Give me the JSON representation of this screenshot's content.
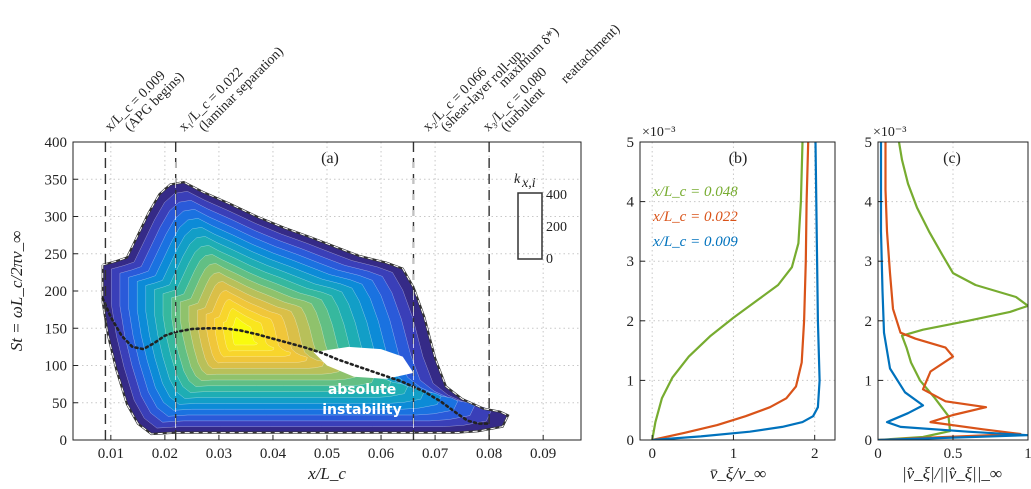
{
  "chart_data": [
    {
      "panel": "(a)",
      "type": "heatmap",
      "xlabel": "x/L_c",
      "ylabel": "St = ωL_c/2πv_∞",
      "xlim": [
        0.003,
        0.097
      ],
      "ylim": [
        0,
        400
      ],
      "xticks": [
        "0.01",
        "0.02",
        "0.03",
        "0.04",
        "0.05",
        "0.06",
        "0.07",
        "0.08",
        "0.09"
      ],
      "yticks": [
        "0",
        "50",
        "100",
        "150",
        "200",
        "250",
        "300",
        "350",
        "400"
      ],
      "grid": true,
      "colorbar": {
        "label": "k_{x,i}",
        "ticks": [
          "0",
          "200",
          "400"
        ],
        "placement": "top-right"
      },
      "inner_text": "absolute instability",
      "vlines": [
        {
          "x": 0.009,
          "label": "x/L_c = 0.009",
          "note": "(APG begins)"
        },
        {
          "x": 0.022,
          "label": "x₁/L_c = 0.022",
          "note": "(laminar separation)"
        },
        {
          "x": 0.066,
          "label": "x₂/L_c = 0.066",
          "note": "(shear-layer roll-up,",
          "note2": "maximum δ*)"
        },
        {
          "x": 0.08,
          "label": "x₃/L_c = 0.080",
          "note": "(turbulent",
          "note2": "reattachment)"
        }
      ],
      "outer_boundary": [
        [
          0.0085,
          235
        ],
        [
          0.011,
          240
        ],
        [
          0.013,
          245
        ],
        [
          0.015,
          275
        ],
        [
          0.017,
          305
        ],
        [
          0.019,
          330
        ],
        [
          0.021,
          343
        ],
        [
          0.0235,
          346
        ],
        [
          0.027,
          333
        ],
        [
          0.032,
          317
        ],
        [
          0.037,
          300
        ],
        [
          0.042,
          285
        ],
        [
          0.047,
          272
        ],
        [
          0.052,
          258
        ],
        [
          0.056,
          247
        ],
        [
          0.061,
          238
        ],
        [
          0.064,
          230
        ],
        [
          0.066,
          205
        ],
        [
          0.068,
          165
        ],
        [
          0.07,
          110
        ],
        [
          0.072,
          72
        ],
        [
          0.075,
          55
        ],
        [
          0.079,
          42
        ],
        [
          0.082,
          38
        ],
        [
          0.0835,
          33
        ],
        [
          0.0825,
          18
        ],
        [
          0.078,
          12
        ],
        [
          0.074,
          10
        ],
        [
          0.068,
          10
        ],
        [
          0.06,
          10
        ],
        [
          0.05,
          10
        ],
        [
          0.04,
          10
        ],
        [
          0.03,
          10
        ],
        [
          0.022,
          10
        ],
        [
          0.0175,
          8
        ],
        [
          0.015,
          22
        ],
        [
          0.013,
          48
        ],
        [
          0.011,
          95
        ],
        [
          0.0095,
          140
        ],
        [
          0.0085,
          185
        ],
        [
          0.0085,
          235
        ]
      ],
      "hole": [
        [
          0.0475,
          118
        ],
        [
          0.054,
          125
        ],
        [
          0.06,
          122
        ],
        [
          0.064,
          112
        ],
        [
          0.066,
          90
        ],
        [
          0.061,
          82
        ],
        [
          0.055,
          85
        ],
        [
          0.05,
          100
        ],
        [
          0.0475,
          118
        ]
      ],
      "peak_curve": [
        [
          0.0085,
          190
        ],
        [
          0.01,
          165
        ],
        [
          0.012,
          140
        ],
        [
          0.014,
          125
        ],
        [
          0.016,
          122
        ],
        [
          0.018,
          130
        ],
        [
          0.02,
          140
        ],
        [
          0.022,
          145
        ],
        [
          0.025,
          149
        ],
        [
          0.028,
          150
        ],
        [
          0.031,
          150
        ],
        [
          0.034,
          147
        ],
        [
          0.037,
          142
        ],
        [
          0.04,
          136
        ],
        [
          0.043,
          130
        ],
        [
          0.046,
          124
        ],
        [
          0.049,
          117
        ],
        [
          0.052,
          108
        ],
        [
          0.056,
          98
        ],
        [
          0.06,
          88
        ],
        [
          0.064,
          78
        ],
        [
          0.068,
          65
        ],
        [
          0.071,
          52
        ],
        [
          0.074,
          36
        ],
        [
          0.076,
          26
        ],
        [
          0.078,
          22
        ],
        [
          0.08,
          22
        ]
      ]
    },
    {
      "panel": "(b)",
      "type": "line",
      "xlabel": "v̄_ξ/v_∞",
      "ylabel": "",
      "exponent": "×10⁻³",
      "xlim": [
        -0.15,
        2.25
      ],
      "ylim": [
        0,
        5
      ],
      "xticks": [
        "0",
        "1",
        "2"
      ],
      "yticks": [
        "0",
        "1",
        "2",
        "3",
        "4",
        "5"
      ],
      "grid": true,
      "legend_placement": "top-left",
      "series": [
        {
          "name": "x/L_c = 0.048",
          "color": "#77ac30",
          "points": [
            [
              0,
              0
            ],
            [
              0.04,
              0.3
            ],
            [
              0.12,
              0.7
            ],
            [
              0.25,
              1.05
            ],
            [
              0.45,
              1.4
            ],
            [
              0.72,
              1.75
            ],
            [
              1.0,
              2.05
            ],
            [
              1.3,
              2.35
            ],
            [
              1.55,
              2.6
            ],
            [
              1.72,
              2.9
            ],
            [
              1.8,
              3.3
            ],
            [
              1.83,
              4.0
            ],
            [
              1.85,
              5.0
            ]
          ]
        },
        {
          "name": "x/L_c = 0.022",
          "color": "#d95319",
          "points": [
            [
              0,
              0
            ],
            [
              0.4,
              0.12
            ],
            [
              0.8,
              0.25
            ],
            [
              1.15,
              0.4
            ],
            [
              1.45,
              0.55
            ],
            [
              1.65,
              0.7
            ],
            [
              1.77,
              0.9
            ],
            [
              1.84,
              1.3
            ],
            [
              1.87,
              2.0
            ],
            [
              1.89,
              3.0
            ],
            [
              1.9,
              4.0
            ],
            [
              1.92,
              5.0
            ]
          ]
        },
        {
          "name": "x/L_c = 0.009",
          "color": "#0072bd",
          "points": [
            [
              0,
              0
            ],
            [
              0.6,
              0.06
            ],
            [
              1.2,
              0.14
            ],
            [
              1.6,
              0.22
            ],
            [
              1.85,
              0.3
            ],
            [
              1.98,
              0.4
            ],
            [
              2.04,
              0.55
            ],
            [
              2.06,
              1.0
            ],
            [
              2.04,
              2.0
            ],
            [
              2.03,
              3.0
            ],
            [
              2.02,
              4.0
            ],
            [
              2.01,
              5.0
            ]
          ]
        }
      ]
    },
    {
      "panel": "(c)",
      "type": "line",
      "xlabel": "|v̂_ξ|/||v̂_ξ||_∞",
      "ylabel": "",
      "exponent": "×10⁻³",
      "xlim": [
        0,
        1
      ],
      "ylim": [
        0,
        5
      ],
      "xticks": [
        "0",
        "0.5",
        "1"
      ],
      "yticks": [
        "0",
        "1",
        "2",
        "3",
        "4",
        "5"
      ],
      "grid": true,
      "series": [
        {
          "name": "x/L_c = 0.048",
          "color": "#77ac30",
          "points": [
            [
              0,
              0
            ],
            [
              0.3,
              0.05
            ],
            [
              0.48,
              0.15
            ],
            [
              0.47,
              0.4
            ],
            [
              0.38,
              0.7
            ],
            [
              0.28,
              1.0
            ],
            [
              0.22,
              1.3
            ],
            [
              0.19,
              1.55
            ],
            [
              0.16,
              1.75
            ],
            [
              0.3,
              1.85
            ],
            [
              0.6,
              2.0
            ],
            [
              0.88,
              2.15
            ],
            [
              1.0,
              2.25
            ],
            [
              0.92,
              2.4
            ],
            [
              0.65,
              2.6
            ],
            [
              0.5,
              2.8
            ],
            [
              0.43,
              3.1
            ],
            [
              0.34,
              3.5
            ],
            [
              0.26,
              3.9
            ],
            [
              0.2,
              4.3
            ],
            [
              0.16,
              4.7
            ],
            [
              0.14,
              5.0
            ]
          ]
        },
        {
          "name": "x/L_c = 0.022",
          "color": "#d95319",
          "points": [
            [
              0,
              0
            ],
            [
              0.45,
              0.05
            ],
            [
              0.95,
              0.1
            ],
            [
              0.7,
              0.18
            ],
            [
              0.35,
              0.3
            ],
            [
              0.5,
              0.42
            ],
            [
              0.72,
              0.55
            ],
            [
              0.45,
              0.65
            ],
            [
              0.3,
              0.85
            ],
            [
              0.35,
              1.15
            ],
            [
              0.5,
              1.4
            ],
            [
              0.45,
              1.55
            ],
            [
              0.25,
              1.7
            ],
            [
              0.15,
              1.8
            ],
            [
              0.1,
              2.2
            ],
            [
              0.08,
              2.8
            ],
            [
              0.06,
              3.5
            ],
            [
              0.05,
              4.2
            ],
            [
              0.05,
              5.0
            ]
          ]
        },
        {
          "name": "x/L_c = 0.009",
          "color": "#0072bd",
          "points": [
            [
              0,
              0
            ],
            [
              0.5,
              0.04
            ],
            [
              1.0,
              0.08
            ],
            [
              0.6,
              0.14
            ],
            [
              0.15,
              0.22
            ],
            [
              0.06,
              0.3
            ],
            [
              0.2,
              0.45
            ],
            [
              0.3,
              0.58
            ],
            [
              0.18,
              0.8
            ],
            [
              0.08,
              1.2
            ],
            [
              0.04,
              1.8
            ],
            [
              0.03,
              2.5
            ],
            [
              0.02,
              3.5
            ],
            [
              0.02,
              5.0
            ]
          ]
        }
      ]
    }
  ]
}
